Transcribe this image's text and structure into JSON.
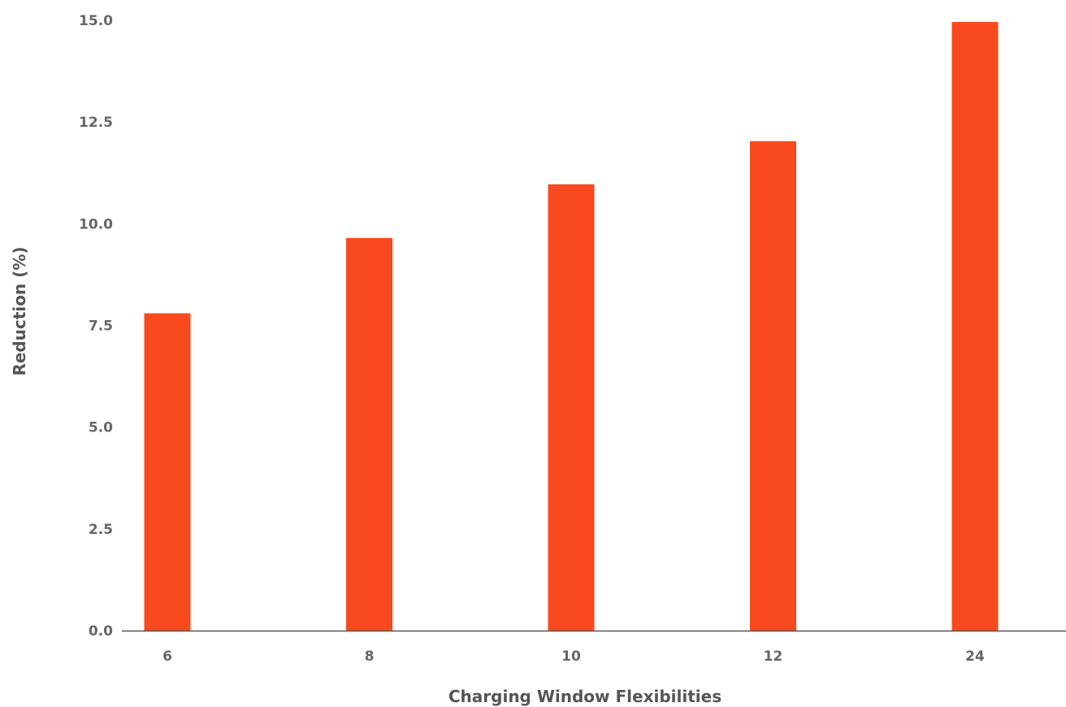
{
  "chart_data": {
    "type": "bar",
    "title": "",
    "xlabel": "Charging Window Flexibilities",
    "ylabel": "Reduction (%)",
    "categories": [
      "6",
      "8",
      "10",
      "12",
      "24"
    ],
    "values": [
      7.8,
      9.65,
      10.97,
      12.03,
      14.96
    ],
    "y_ticks": [
      "0.0",
      "2.5",
      "5.0",
      "7.5",
      "10.0",
      "12.5",
      "15.0"
    ],
    "ylim": [
      0,
      15
    ],
    "grid": false,
    "legend": "none",
    "bar_color": "#F84A1E",
    "axis_color": "#555555"
  }
}
